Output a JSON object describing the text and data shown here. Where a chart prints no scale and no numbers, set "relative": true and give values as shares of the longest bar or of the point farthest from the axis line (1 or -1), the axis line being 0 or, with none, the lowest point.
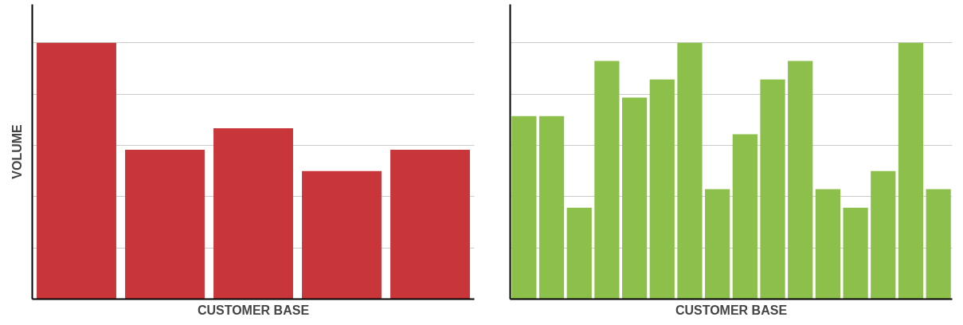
{
  "chart_data": [
    {
      "type": "bar",
      "relative": true,
      "ylabel": "VOLUME",
      "xlabel": "CUSTOMER BASE",
      "categories": [
        null,
        null,
        null,
        null,
        null
      ],
      "color": "#c8363a",
      "values": [
        1,
        0.583,
        0.667,
        0.5,
        0.583
      ],
      "grid": "y"
    },
    {
      "type": "bar",
      "relative": true,
      "xlabel": "CUSTOMER BASE",
      "categories": [
        null,
        null,
        null,
        null,
        null,
        null,
        null,
        null,
        null,
        null,
        null,
        null,
        null,
        null,
        null,
        null
      ],
      "color": "#8cc04a",
      "values": [
        0.714,
        0.714,
        0.357,
        0.929,
        0.786,
        0.857,
        1,
        0.429,
        0.643,
        0.857,
        0.929,
        0.429,
        0.357,
        0.5,
        1,
        0.429
      ],
      "grid": "y"
    }
  ]
}
